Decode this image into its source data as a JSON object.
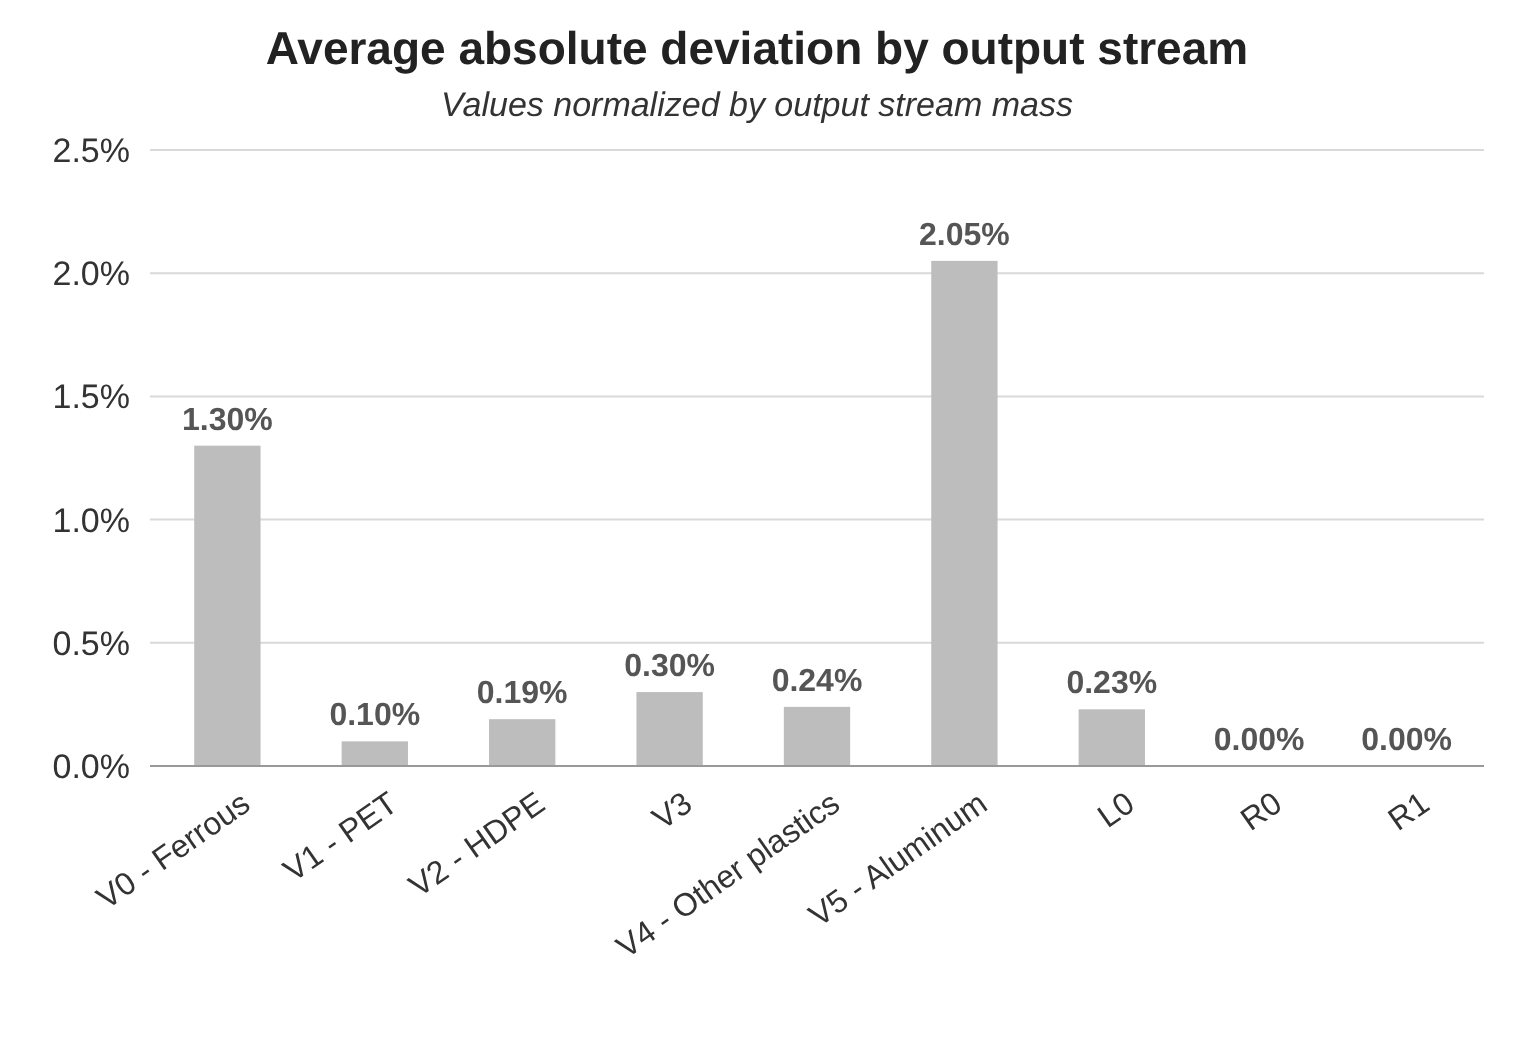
{
  "chart_data": {
    "type": "bar",
    "title": "Average absolute deviation by output stream",
    "subtitle": "Values normalized by output stream mass",
    "categories": [
      "V0 - Ferrous",
      "V1 - PET",
      "V2 - HDPE",
      "V3",
      "V4 - Other plastics",
      "V5 - Aluminum",
      "L0",
      "R0",
      "R1"
    ],
    "values": [
      1.3,
      0.1,
      0.19,
      0.3,
      0.24,
      2.05,
      0.23,
      0.0,
      0.0
    ],
    "value_labels": [
      "1.30%",
      "0.10%",
      "0.19%",
      "0.30%",
      "0.24%",
      "2.05%",
      "0.23%",
      "0.00%",
      "0.00%"
    ],
    "color": "#bdbdbd",
    "ylim": [
      0,
      2.5
    ],
    "yticks": [
      {
        "value": 0,
        "label": "0.0%"
      },
      {
        "value": 0.5,
        "label": "0.5%"
      },
      {
        "value": 1,
        "label": "1.0%"
      },
      {
        "value": 1.5,
        "label": "1.5%"
      },
      {
        "value": 2,
        "label": "2.0%"
      },
      {
        "value": 2.5,
        "label": "2.5%"
      }
    ],
    "grid": true
  }
}
